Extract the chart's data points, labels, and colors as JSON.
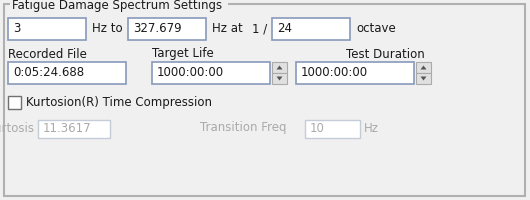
{
  "title": "Fatigue Damage Spectrum Settings",
  "bg_color": "#f0f0f0",
  "outer_border_color": "#b0b0b0",
  "box_bg": "#ffffff",
  "box_border": "#8899bb",
  "disabled_box_border": "#c4ccd8",
  "text_color": "#1a1a1a",
  "disabled_text": "#aaaaaa",
  "spinner_bg": "#e0e0e0",
  "spinner_border": "#aaaaaa",
  "row1_values": [
    "3",
    "327.679",
    "24"
  ],
  "row2_values": [
    "0:05:24.688",
    "1000:00:00",
    "1000:00:00"
  ],
  "row2_labels": [
    "Recorded File",
    "Target Life",
    "Test Duration"
  ],
  "checkbox_label": "Kurtosion(R) Time Compression",
  "kurtosis_label": "Kurtosis",
  "kurtosis_value": "11.3617",
  "transition_label": "Transition Freq",
  "transition_value": "10",
  "hz_label": "Hz",
  "figsize": [
    5.3,
    2.0
  ],
  "dpi": 100
}
